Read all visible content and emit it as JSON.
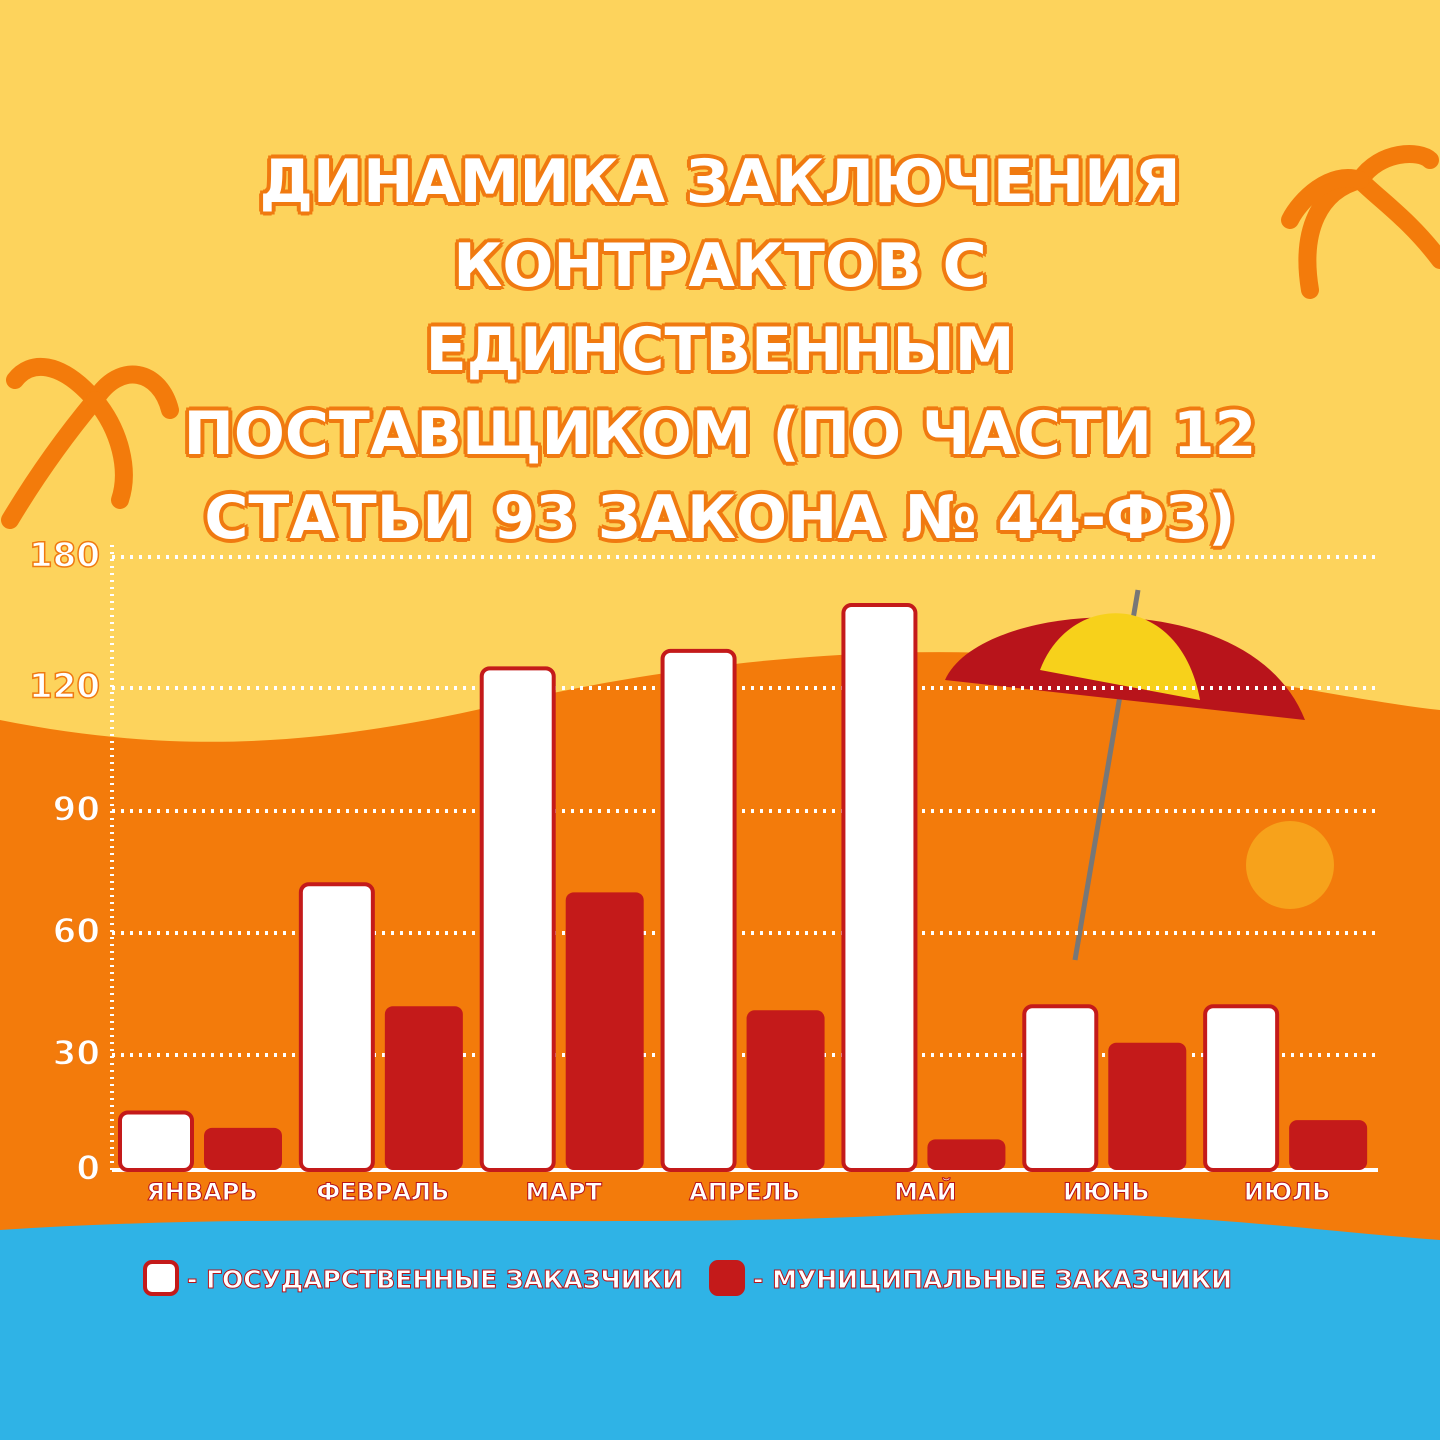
{
  "chart_data": {
    "type": "bar",
    "title": "ДИНАМИКА ЗАКЛЮЧЕНИЯ КОНТРАКТОВ С ЕДИНСТВЕННЫМ ПОСТАВЩИКОМ (ПО ЧАСТИ 12 СТАТЬИ 93 ЗАКОНА № 44-ФЗ)",
    "categories": [
      "ЯНВАРЬ",
      "ФЕВРАЛЬ",
      "МАРТ",
      "АПРЕЛЬ",
      "МАЙ",
      "ИЮНЬ",
      "ИЮЛЬ"
    ],
    "series": [
      {
        "name": "- ГОСУДАРСТВЕННЫЕ ЗАКАЗЧИКИ",
        "color": "#ffffff",
        "values": [
          15,
          72,
          129,
          137,
          158,
          42,
          42
        ]
      },
      {
        "name": "- МУНИЦИПАЛЬНЫЕ ЗАКАЗЧИКИ",
        "color": "#c41a1a",
        "values": [
          11,
          42,
          70,
          41,
          8,
          33,
          13
        ]
      }
    ],
    "ylim": [
      0,
      180
    ],
    "yticks": [
      0,
      30,
      60,
      90,
      120,
      180
    ],
    "grid": true
  }
}
